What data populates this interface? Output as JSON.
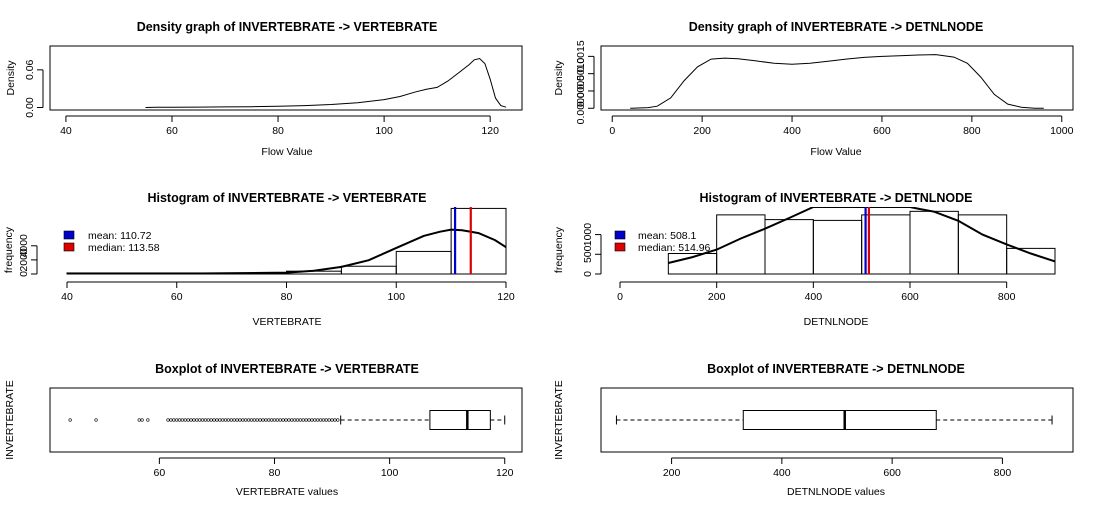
{
  "chart_data": [
    {
      "id": "density_vertebrate",
      "type": "line",
      "title": "Density graph of INVERTEBRATE  ->  VERTEBRATE",
      "xlabel": "Flow Value",
      "ylabel": "Density",
      "xlim": [
        37,
        126
      ],
      "ylim": [
        -0.004,
        0.098
      ],
      "xticks": [
        40,
        60,
        80,
        100,
        120
      ],
      "yticks": [
        0.0,
        0.06
      ],
      "ytick_labels": [
        "0.00",
        "0.06"
      ],
      "x": [
        55,
        57,
        60,
        65,
        70,
        75,
        80,
        85,
        90,
        95,
        100,
        103,
        106,
        108,
        110,
        112,
        114,
        116,
        117,
        118,
        119,
        120,
        121,
        122,
        123
      ],
      "y": [
        0.0,
        0.0003,
        0.0004,
        0.0006,
        0.0009,
        0.0013,
        0.0019,
        0.003,
        0.0047,
        0.0075,
        0.0125,
        0.0175,
        0.025,
        0.029,
        0.032,
        0.042,
        0.055,
        0.068,
        0.076,
        0.078,
        0.07,
        0.045,
        0.015,
        0.003,
        0.0005
      ]
    },
    {
      "id": "density_detnlnode",
      "type": "line",
      "title": "Density graph of INVERTEBRATE  ->  DETNLNODE",
      "xlabel": "Flow Value",
      "ylabel": "Density",
      "xlim": [
        -25,
        1025
      ],
      "ylim": [
        -5e-05,
        0.0018
      ],
      "xticks": [
        0,
        200,
        400,
        600,
        800,
        1000
      ],
      "yticks": [
        0.0,
        0.0005,
        0.001,
        0.0015
      ],
      "ytick_labels": [
        "0.0000",
        "0.0005",
        "0.0010",
        "0.0015"
      ],
      "x": [
        40,
        80,
        100,
        130,
        160,
        190,
        220,
        250,
        280,
        320,
        360,
        400,
        440,
        480,
        520,
        560,
        600,
        640,
        680,
        720,
        760,
        790,
        820,
        850,
        880,
        910,
        940,
        960
      ],
      "y": [
        0.0,
        2e-05,
        6e-05,
        0.0003,
        0.0008,
        0.0012,
        0.00142,
        0.00145,
        0.00143,
        0.00137,
        0.0013,
        0.00127,
        0.0013,
        0.00136,
        0.00142,
        0.00147,
        0.0015,
        0.00152,
        0.00154,
        0.00155,
        0.00148,
        0.0013,
        0.0009,
        0.0004,
        0.00012,
        3e-05,
        0.0,
        0.0
      ]
    },
    {
      "id": "hist_vertebrate",
      "type": "bar",
      "title": "Histogram of INVERTEBRATE  ->  VERTEBRATE",
      "xlabel": "VERTEBRATE",
      "ylabel": "frequency",
      "xlim": [
        40,
        120
      ],
      "ylim": [
        0,
        9500
      ],
      "xticks": [
        40,
        60,
        80,
        100,
        120
      ],
      "yticks": [
        0,
        2000,
        4000
      ],
      "bins": [
        {
          "from": 40,
          "to": 80,
          "count": 150
        },
        {
          "from": 80,
          "to": 90,
          "count": 400
        },
        {
          "from": 90,
          "to": 100,
          "count": 1100
        },
        {
          "from": 100,
          "to": 110,
          "count": 3200
        },
        {
          "from": 110,
          "to": 120,
          "count": 9300
        }
      ],
      "curve": {
        "x": [
          40,
          60,
          80,
          85,
          90,
          95,
          100,
          105,
          108,
          110,
          112,
          115,
          118,
          120
        ],
        "y": [
          0,
          30,
          200,
          450,
          1000,
          1950,
          3700,
          5400,
          6000,
          6300,
          6200,
          5800,
          4800,
          3800
        ]
      },
      "mean": 110.72,
      "median": 113.58,
      "legend": [
        {
          "label": "mean: 110.72",
          "color": "#0000cc"
        },
        {
          "label": "median:  113.58",
          "color": "#dd0000"
        }
      ]
    },
    {
      "id": "hist_detnlnode",
      "type": "bar",
      "title": "Histogram of INVERTEBRATE  ->  DETNLNODE",
      "xlabel": "DETNLNODE",
      "ylabel": "frequency",
      "xlim": [
        0,
        900
      ],
      "ylim": [
        0,
        1700
      ],
      "xticks": [
        0,
        200,
        400,
        600,
        800
      ],
      "yticks": [
        0,
        500,
        1000
      ],
      "bins": [
        {
          "from": 100,
          "to": 200,
          "count": 520
        },
        {
          "from": 200,
          "to": 300,
          "count": 1500
        },
        {
          "from": 300,
          "to": 400,
          "count": 1380
        },
        {
          "from": 400,
          "to": 500,
          "count": 1360
        },
        {
          "from": 500,
          "to": 600,
          "count": 1500
        },
        {
          "from": 600,
          "to": 700,
          "count": 1590
        },
        {
          "from": 700,
          "to": 800,
          "count": 1500
        },
        {
          "from": 800,
          "to": 900,
          "count": 650
        }
      ],
      "curve": {
        "x": [
          100,
          150,
          200,
          250,
          300,
          350,
          400,
          600,
          620,
          650,
          700,
          750,
          800,
          850,
          900
        ],
        "y": [
          280,
          430,
          620,
          900,
          1150,
          1420,
          1700,
          1700,
          1650,
          1580,
          1350,
          1000,
          750,
          520,
          320
        ]
      },
      "mean": 508.1,
      "median": 514.96,
      "legend": [
        {
          "label": "mean: 508.1",
          "color": "#0000cc"
        },
        {
          "label": "median:  514.96",
          "color": "#dd0000"
        }
      ]
    },
    {
      "id": "box_vertebrate",
      "type": "boxplot",
      "title": "Boxplot of INVERTEBRATE  ->  VERTEBRATE",
      "xlabel": "VERTEBRATE  values",
      "ylabel": "INVERTEBRATE",
      "xlim": [
        41,
        123
      ],
      "xticks": [
        60,
        80,
        100,
        120
      ],
      "min": 91.5,
      "q1": 107,
      "median": 113.5,
      "q3": 117.5,
      "max": 120,
      "outliers": [
        44.5,
        49,
        56.5,
        57,
        58,
        61.5,
        62,
        62.5,
        63,
        63.5,
        64,
        64.5,
        65,
        65.5,
        66,
        66.5,
        67,
        67.5,
        68,
        68.5,
        69,
        69.5,
        70,
        70.5,
        71,
        71.5,
        72,
        72.5,
        73,
        73.5,
        74,
        74.5,
        75,
        75.5,
        76,
        76.5,
        77,
        77.5,
        78,
        78.5,
        79,
        79.5,
        80,
        80.5,
        81,
        81.5,
        82,
        82.5,
        83,
        83.5,
        84,
        84.5,
        85,
        85.5,
        86,
        86.5,
        87,
        87.5,
        88,
        88.5,
        89,
        89.5,
        90,
        90.5,
        91
      ]
    },
    {
      "id": "box_detnlnode",
      "type": "boxplot",
      "title": "Boxplot of INVERTEBRATE  ->  DETNLNODE",
      "xlabel": "DETNLNODE  values",
      "ylabel": "INVERTEBRATE",
      "xlim": [
        72,
        928
      ],
      "xticks": [
        200,
        400,
        600,
        800
      ],
      "min": 100,
      "q1": 330,
      "median": 514,
      "q3": 680,
      "max": 890,
      "outliers": []
    }
  ]
}
